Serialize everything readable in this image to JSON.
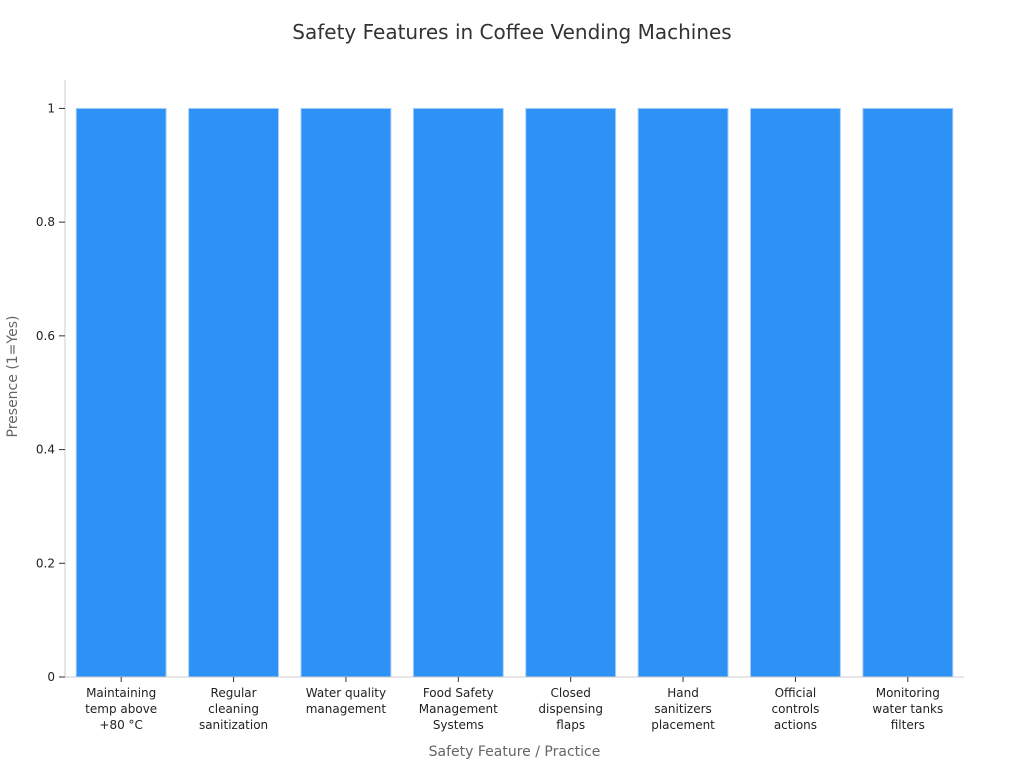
{
  "chart_data": {
    "type": "bar",
    "title": "Safety Features in Coffee Vending Machines",
    "xlabel": "Safety Feature / Practice",
    "ylabel": "Presence (1=Yes)",
    "categories": [
      [
        "Maintaining",
        "temp above",
        "+80 °C"
      ],
      [
        "Regular",
        "cleaning",
        "sanitization"
      ],
      [
        "Water quality",
        "management"
      ],
      [
        "Food Safety",
        "Management",
        "Systems"
      ],
      [
        "Closed",
        "dispensing",
        "flaps"
      ],
      [
        "Hand",
        "sanitizers",
        "placement"
      ],
      [
        "Official",
        "controls",
        "actions"
      ],
      [
        "Monitoring",
        "water tanks",
        "filters"
      ]
    ],
    "values": [
      1,
      1,
      1,
      1,
      1,
      1,
      1,
      1
    ],
    "ylim": [
      0,
      1.05
    ],
    "yticks": [
      0,
      0.2,
      0.4,
      0.6,
      0.8,
      1
    ],
    "ytick_labels": [
      "0",
      "0.2",
      "0.4",
      "0.6",
      "0.8",
      "1"
    ],
    "grid": false,
    "legend": "none",
    "bar_color": "#2d91f6",
    "bar_edge_color": "#a9cff7"
  }
}
